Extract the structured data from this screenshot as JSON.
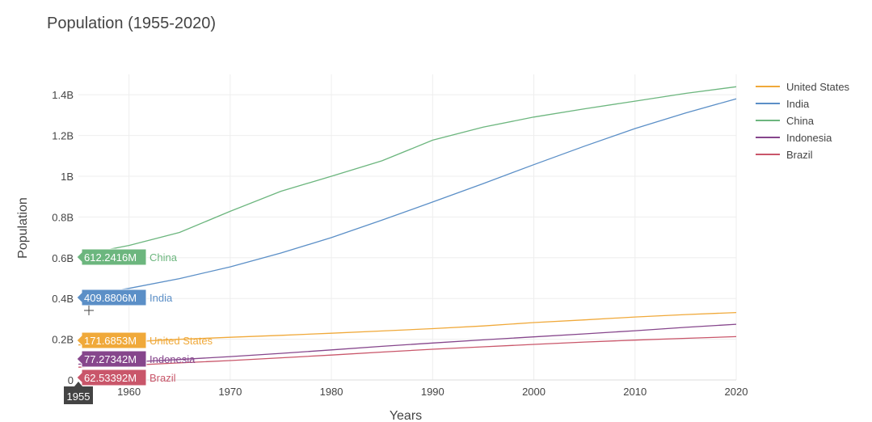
{
  "chart_data": {
    "type": "line",
    "title": "Population (1955-2020)",
    "xlabel": "Years",
    "ylabel": "Population",
    "xlim": [
      1955,
      2020
    ],
    "ylim": [
      0,
      1500000000
    ],
    "x_ticks": [
      1960,
      1970,
      1980,
      1990,
      2000,
      2010,
      2020
    ],
    "y_ticks": [
      {
        "value": 0,
        "label": "0"
      },
      {
        "value": 200000000,
        "label": "0.2B"
      },
      {
        "value": 400000000,
        "label": "0.4B"
      },
      {
        "value": 600000000,
        "label": "0.6B"
      },
      {
        "value": 800000000,
        "label": "0.8B"
      },
      {
        "value": 1000000000,
        "label": "1B"
      },
      {
        "value": 1200000000,
        "label": "1.2B"
      },
      {
        "value": 1400000000,
        "label": "1.4B"
      }
    ],
    "grid": true,
    "legend_position": "right",
    "x": [
      1955,
      1960,
      1965,
      1970,
      1975,
      1980,
      1985,
      1990,
      1995,
      2000,
      2005,
      2010,
      2015,
      2020
    ],
    "series": [
      {
        "name": "United States",
        "color": "#f0a93a",
        "values": [
          171685300,
          186700000,
          199700000,
          209500000,
          219000000,
          229500000,
          240500000,
          252100000,
          265200000,
          281700000,
          294900000,
          309000000,
          320900000,
          331000000
        ],
        "hover": "171.6853M"
      },
      {
        "name": "India",
        "color": "#5b8fc7",
        "values": [
          409880600,
          449500000,
          497700000,
          555200000,
          623100000,
          698900000,
          784400000,
          873300000,
          963900000,
          1056600000,
          1147600000,
          1234300000,
          1310200000,
          1380000000
        ],
        "hover": "409.8806M"
      },
      {
        "name": "China",
        "color": "#6cb67e",
        "values": [
          612241600,
          660400000,
          724200000,
          827600000,
          926200000,
          1000100000,
          1075600000,
          1176900000,
          1240900000,
          1290600000,
          1330800000,
          1368800000,
          1406800000,
          1439300000
        ],
        "hover": "612.2416M"
      },
      {
        "name": "Indonesia",
        "color": "#86468c",
        "values": [
          77273420,
          87800000,
          100300000,
          114800000,
          130700000,
          147500000,
          165000000,
          181400000,
          196900000,
          211500000,
          226300000,
          241800000,
          258400000,
          273500000
        ],
        "hover": "77.27342M"
      },
      {
        "name": "Brazil",
        "color": "#c9566a",
        "values": [
          62533920,
          72200000,
          83900000,
          95300000,
          108600000,
          122300000,
          136800000,
          150700000,
          162800000,
          174800000,
          186100000,
          195700000,
          204500000,
          212600000
        ],
        "hover": "62.53392M"
      }
    ],
    "hover_x_label": "1955"
  }
}
